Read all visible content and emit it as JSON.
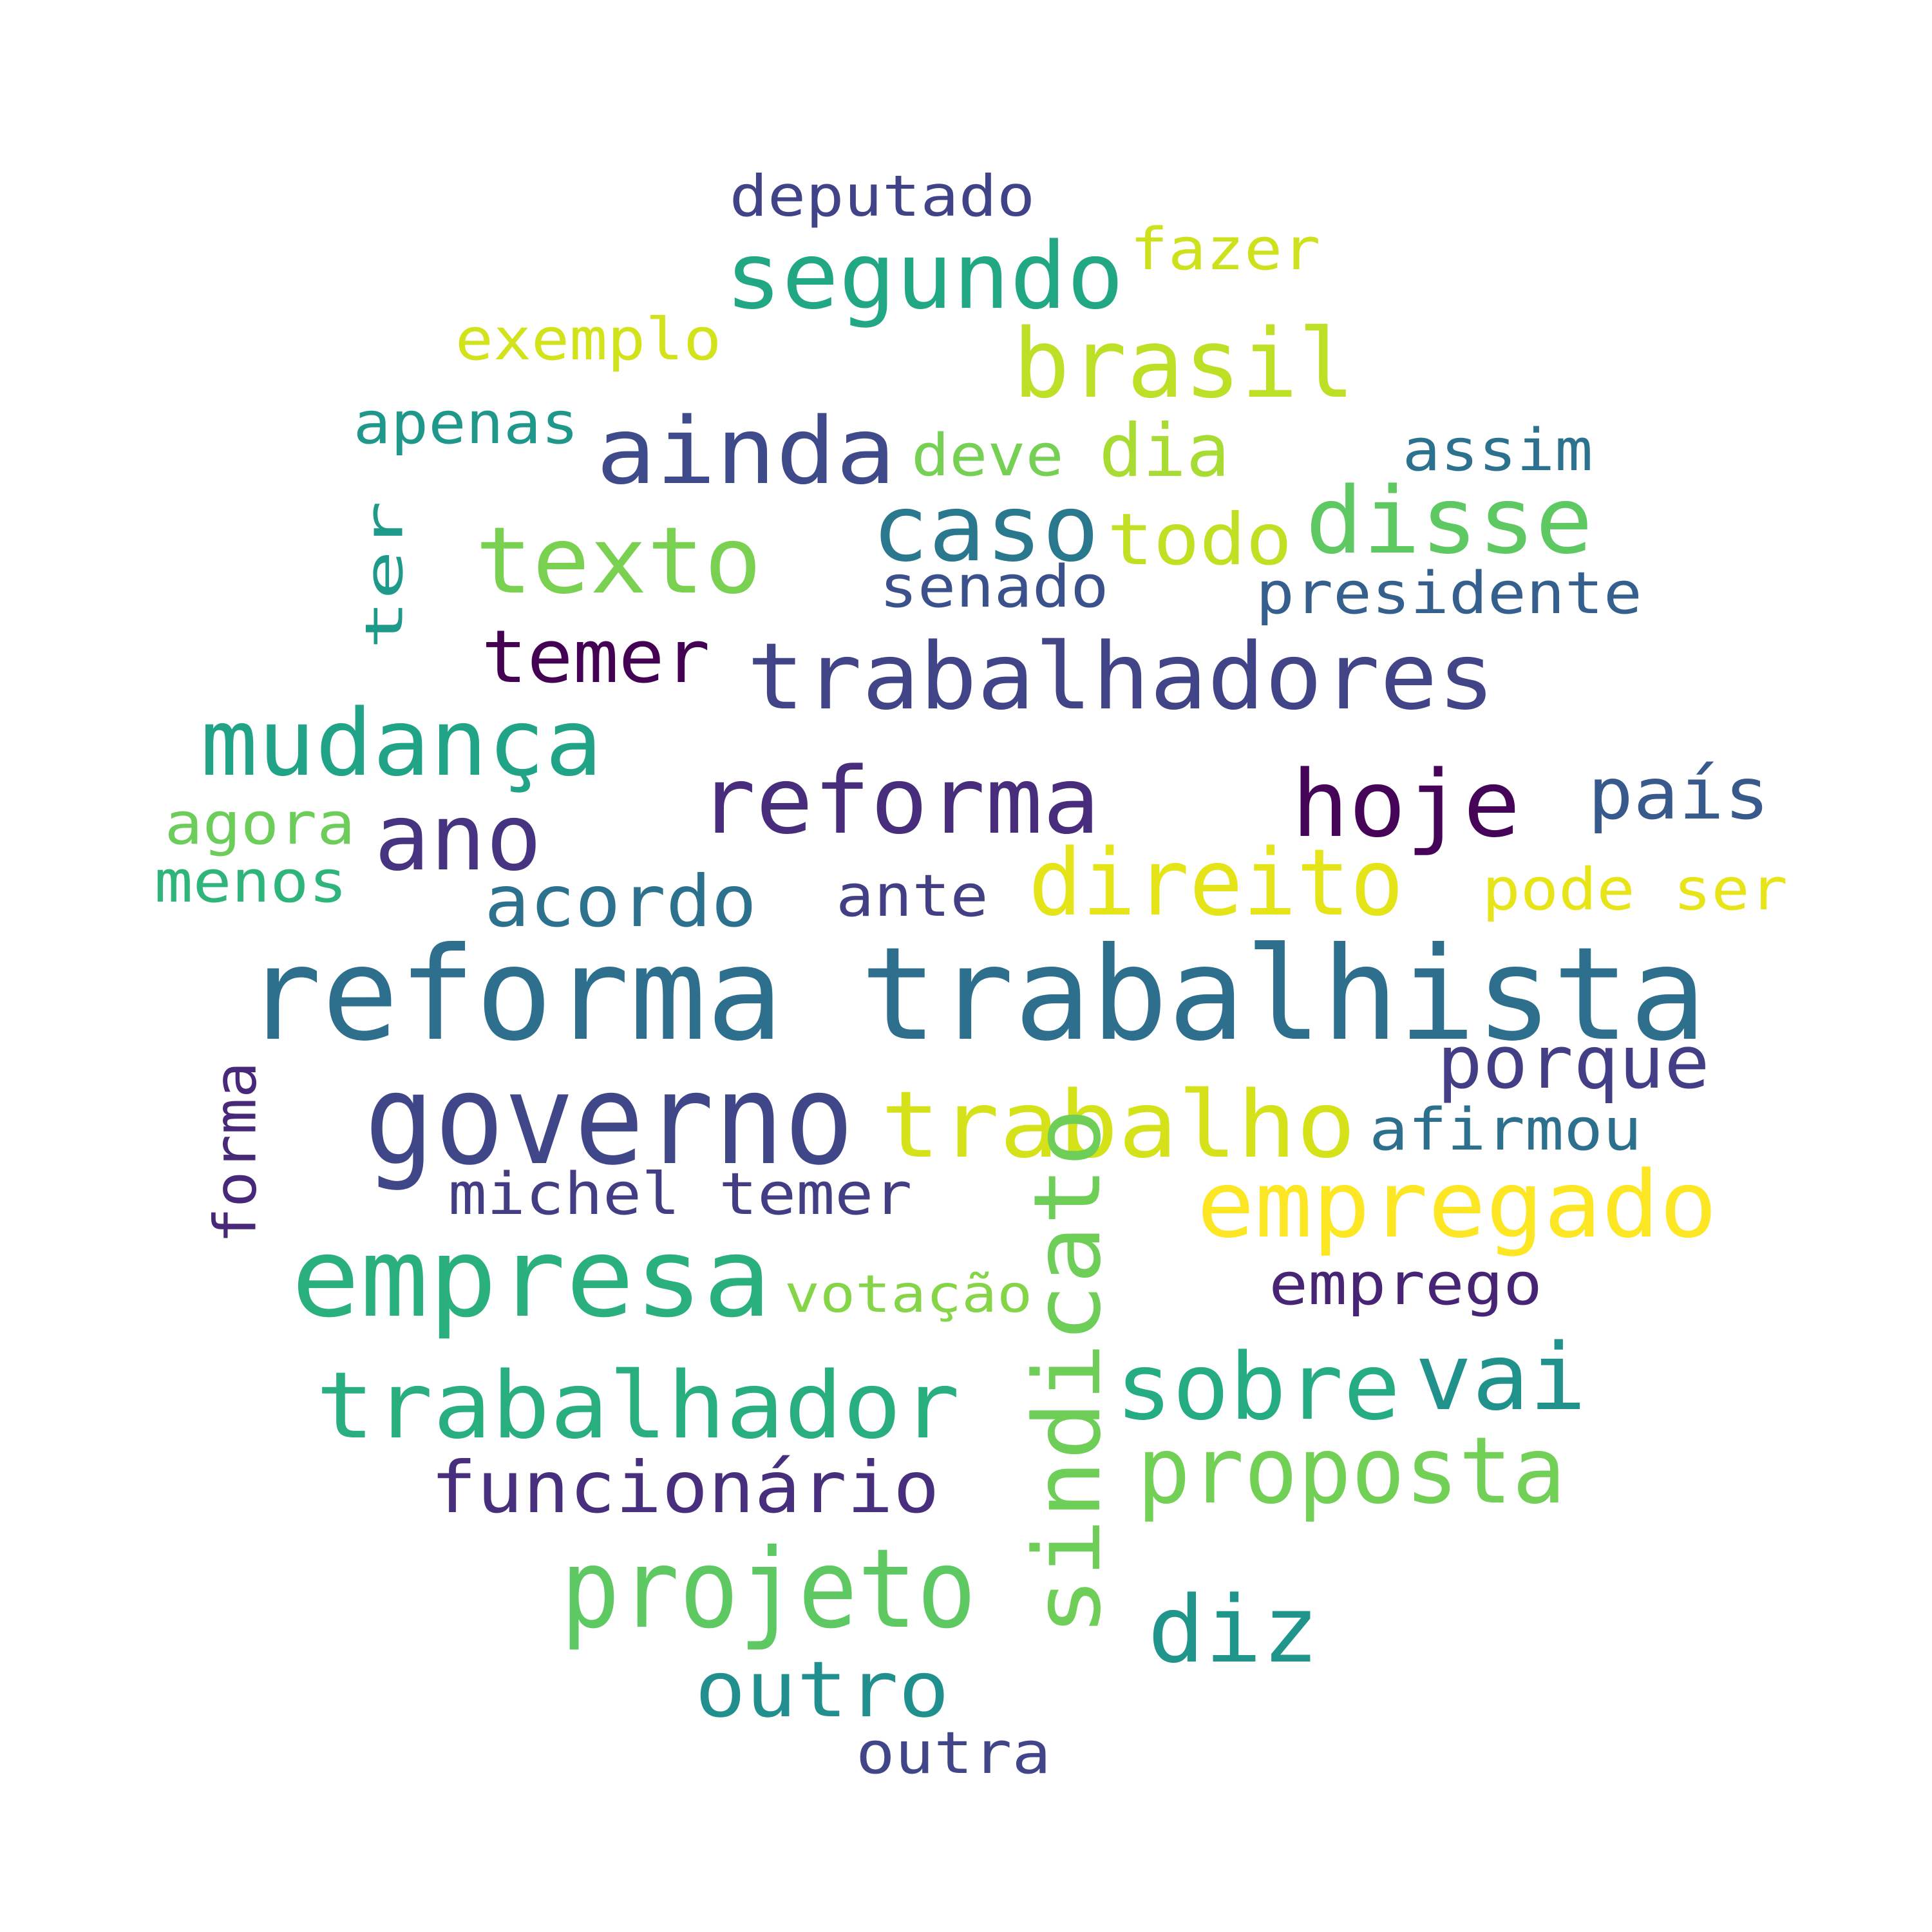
{
  "words": [
    {
      "text": "deputado",
      "color": "#404387"
    },
    {
      "text": "fazer",
      "color": "#cde11d"
    },
    {
      "text": "segundo",
      "color": "#22a785"
    },
    {
      "text": "exemplo",
      "color": "#d2e21b"
    },
    {
      "text": "brasil",
      "color": "#bddf26"
    },
    {
      "text": "apenas",
      "color": "#1f988b"
    },
    {
      "text": "ainda",
      "color": "#3e4a89"
    },
    {
      "text": "deve",
      "color": "#75d054"
    },
    {
      "text": "dia",
      "color": "#a8db34"
    },
    {
      "text": "assim",
      "color": "#2c728e"
    },
    {
      "text": "ter",
      "color": "#1f9a8a"
    },
    {
      "text": "texto",
      "color": "#7ad151"
    },
    {
      "text": "caso",
      "color": "#2a788e"
    },
    {
      "text": "todo",
      "color": "#c2df23"
    },
    {
      "text": "disse",
      "color": "#5ec962"
    },
    {
      "text": "senado",
      "color": "#3b518b"
    },
    {
      "text": "presidente",
      "color": "#355f8d"
    },
    {
      "text": "temer",
      "color": "#440154"
    },
    {
      "text": "trabalhadores",
      "color": "#414487"
    },
    {
      "text": "mudança",
      "color": "#20a386"
    },
    {
      "text": "reforma",
      "color": "#472d7b"
    },
    {
      "text": "hoje",
      "color": "#450457"
    },
    {
      "text": "país",
      "color": "#38598c"
    },
    {
      "text": "agora",
      "color": "#6ccd5a"
    },
    {
      "text": "ano",
      "color": "#463480"
    },
    {
      "text": "menos",
      "color": "#2fb47c"
    },
    {
      "text": "direito",
      "color": "#e5e419"
    },
    {
      "text": "acordo",
      "color": "#2c718e"
    },
    {
      "text": "ante",
      "color": "#423f85"
    },
    {
      "text": "pode ser",
      "color": "#e7e419"
    },
    {
      "text": "reforma trabalhista",
      "color": "#2e6f8e"
    },
    {
      "text": "porque",
      "color": "#433e85"
    },
    {
      "text": "forma",
      "color": "#482878"
    },
    {
      "text": "governo",
      "color": "#3f4788"
    },
    {
      "text": "trabalho",
      "color": "#d5e21a"
    },
    {
      "text": "afirmou",
      "color": "#2d708e"
    },
    {
      "text": "michel temer",
      "color": "#433d84"
    },
    {
      "text": "empregado",
      "color": "#fde725"
    },
    {
      "text": "empresa",
      "color": "#2ab07f"
    },
    {
      "text": "votação",
      "color": "#86d549"
    },
    {
      "text": "sindicato",
      "color": "#6ece58"
    },
    {
      "text": "emprego",
      "color": "#482475"
    },
    {
      "text": "sobre",
      "color": "#25ac82"
    },
    {
      "text": "vai",
      "color": "#21918c"
    },
    {
      "text": "trabalhador",
      "color": "#29af7f"
    },
    {
      "text": "proposta",
      "color": "#73d056"
    },
    {
      "text": "funcionário",
      "color": "#472f7d"
    },
    {
      "text": "projeto",
      "color": "#5ec962"
    },
    {
      "text": "diz",
      "color": "#1f958b"
    },
    {
      "text": "outro",
      "color": "#218f8d"
    },
    {
      "text": "outra",
      "color": "#404688"
    }
  ]
}
